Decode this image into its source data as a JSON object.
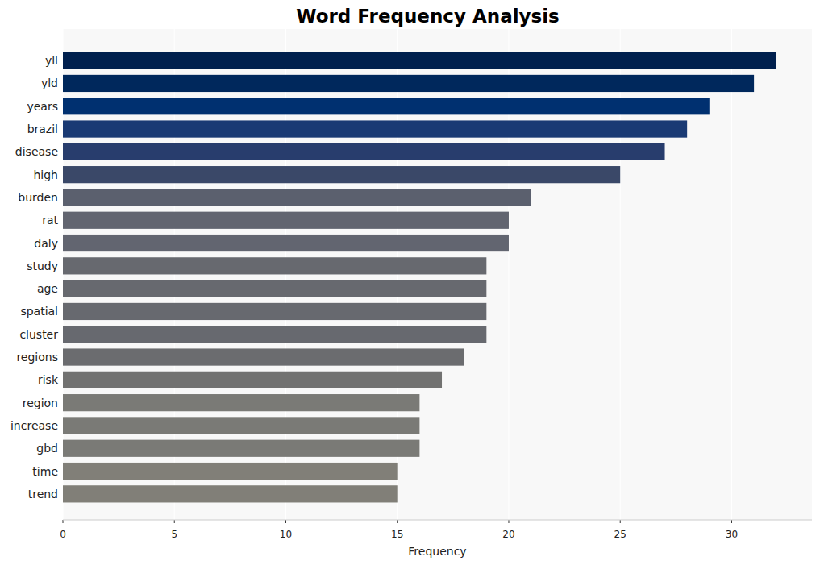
{
  "chart_data": {
    "type": "bar",
    "orientation": "horizontal",
    "title": "Word Frequency Analysis",
    "x_label": "Frequency",
    "categories": [
      "yll",
      "yld",
      "years",
      "brazil",
      "disease",
      "high",
      "burden",
      "rat",
      "daly",
      "study",
      "age",
      "spatial",
      "cluster",
      "regions",
      "risk",
      "region",
      "increase",
      "gbd",
      "time",
      "trend"
    ],
    "values": [
      32,
      31,
      29,
      28,
      27,
      25,
      21,
      20,
      20,
      19,
      19,
      19,
      19,
      18,
      17,
      16,
      16,
      16,
      15,
      15
    ],
    "colors": [
      "#00204e",
      "#00285c",
      "#003070",
      "#1a3a74",
      "#283d6d",
      "#3a4868",
      "#5b606e",
      "#626570",
      "#626570",
      "#67696f",
      "#67696f",
      "#67696f",
      "#67696f",
      "#6b6c6f",
      "#727271",
      "#7a7a76",
      "#7a7a76",
      "#7a7a76",
      "#817f78",
      "#817f78"
    ],
    "xlim": [
      0,
      33.6
    ],
    "xticks": [
      0,
      5,
      10,
      15,
      20,
      25,
      30
    ],
    "grid": true
  }
}
